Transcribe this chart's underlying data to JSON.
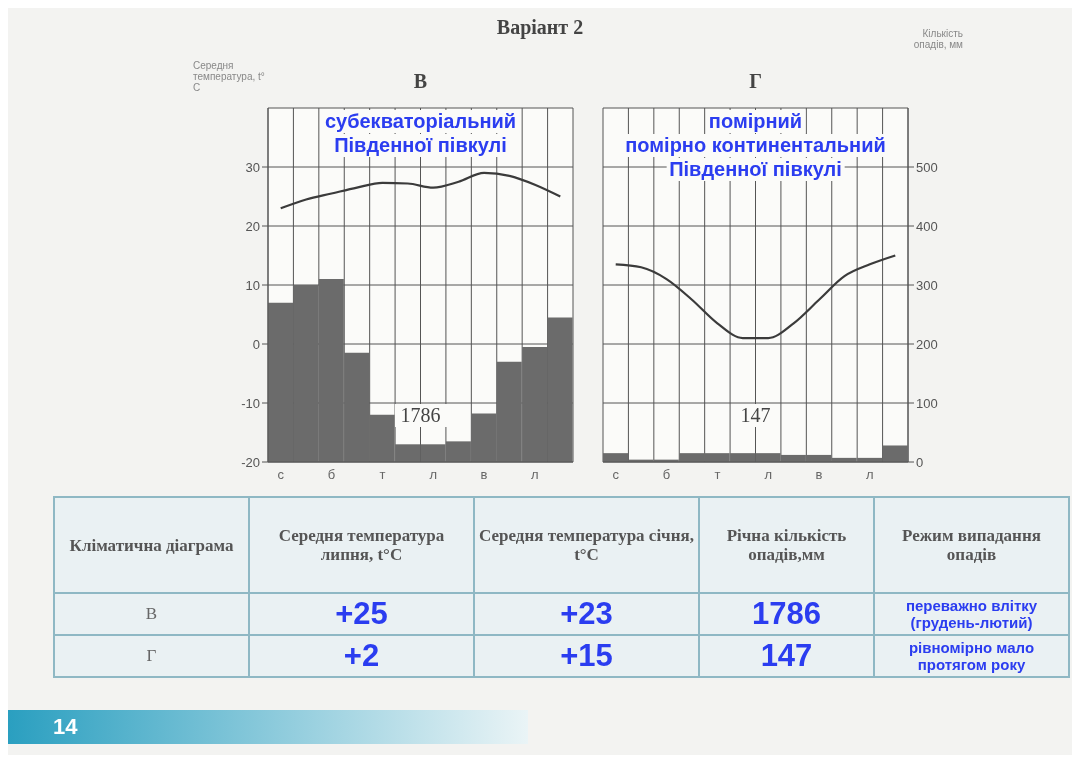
{
  "chart_data": [
    {
      "type": "bar",
      "title": "В",
      "ylabel": "Середня температура, t° C",
      "categories": [
        "с",
        null,
        "б",
        null,
        "т",
        null,
        "л",
        null,
        "в",
        null,
        "л",
        null
      ],
      "series": [
        {
          "type": "bar",
          "axis": "y2",
          "color": "#6b6b6b",
          "values": [
            270,
            300,
            310,
            185,
            80,
            30,
            30,
            35,
            82,
            170,
            195,
            245
          ]
        },
        {
          "type": "line",
          "color": "#3b3b3b",
          "values": [
            23,
            24.5,
            25.5,
            26.5,
            27.3,
            27.2,
            26.5,
            27.5,
            29,
            28.5,
            27,
            25
          ]
        }
      ],
      "ylim": [
        -20,
        40
      ],
      "yticks": [
        -20,
        -10,
        0,
        10,
        20,
        30
      ],
      "y2lim": [
        0,
        600
      ],
      "grid": true,
      "annotations": [
        "субекваторіальний",
        "Південної півкулі",
        "1786"
      ]
    },
    {
      "type": "bar",
      "title": "Г",
      "y2label": "Кількість опадів, мм",
      "categories": [
        "с",
        null,
        "б",
        null,
        "т",
        null,
        "л",
        null,
        "в",
        null,
        "л",
        null
      ],
      "series": [
        {
          "type": "bar",
          "axis": "y2",
          "color": "#6b6b6b",
          "values": [
            15,
            4,
            4,
            15,
            15,
            15,
            15,
            12,
            12,
            7,
            7,
            28
          ]
        },
        {
          "type": "line",
          "color": "#3b3b3b",
          "values": [
            13.5,
            13,
            11,
            7.5,
            3.5,
            1,
            1,
            3.5,
            7.5,
            11.5,
            13.5,
            15
          ]
        }
      ],
      "ylim": [
        -20,
        40
      ],
      "y2lim": [
        0,
        600
      ],
      "y2ticks": [
        0,
        100,
        200,
        300,
        400,
        500
      ],
      "grid": true,
      "annotations": [
        "помірний",
        "помірно континентальний",
        "Південної півкулі",
        "147"
      ]
    },
    {
      "type": "other",
      "title": "Варіант 2",
      "annotations": [
        "Кліматична діаграма",
        "Середня температура липня, t°C",
        "Середня температура січня, t°C",
        "Річна кількість опадів,мм",
        "Режим випадання опадів",
        "В",
        "+25",
        "+23",
        "1786",
        "переважно влітку (грудень-лютий)",
        "Г",
        "+2",
        "+15",
        "147",
        "рівномірно мало протягом року",
        "14"
      ]
    }
  ]
}
